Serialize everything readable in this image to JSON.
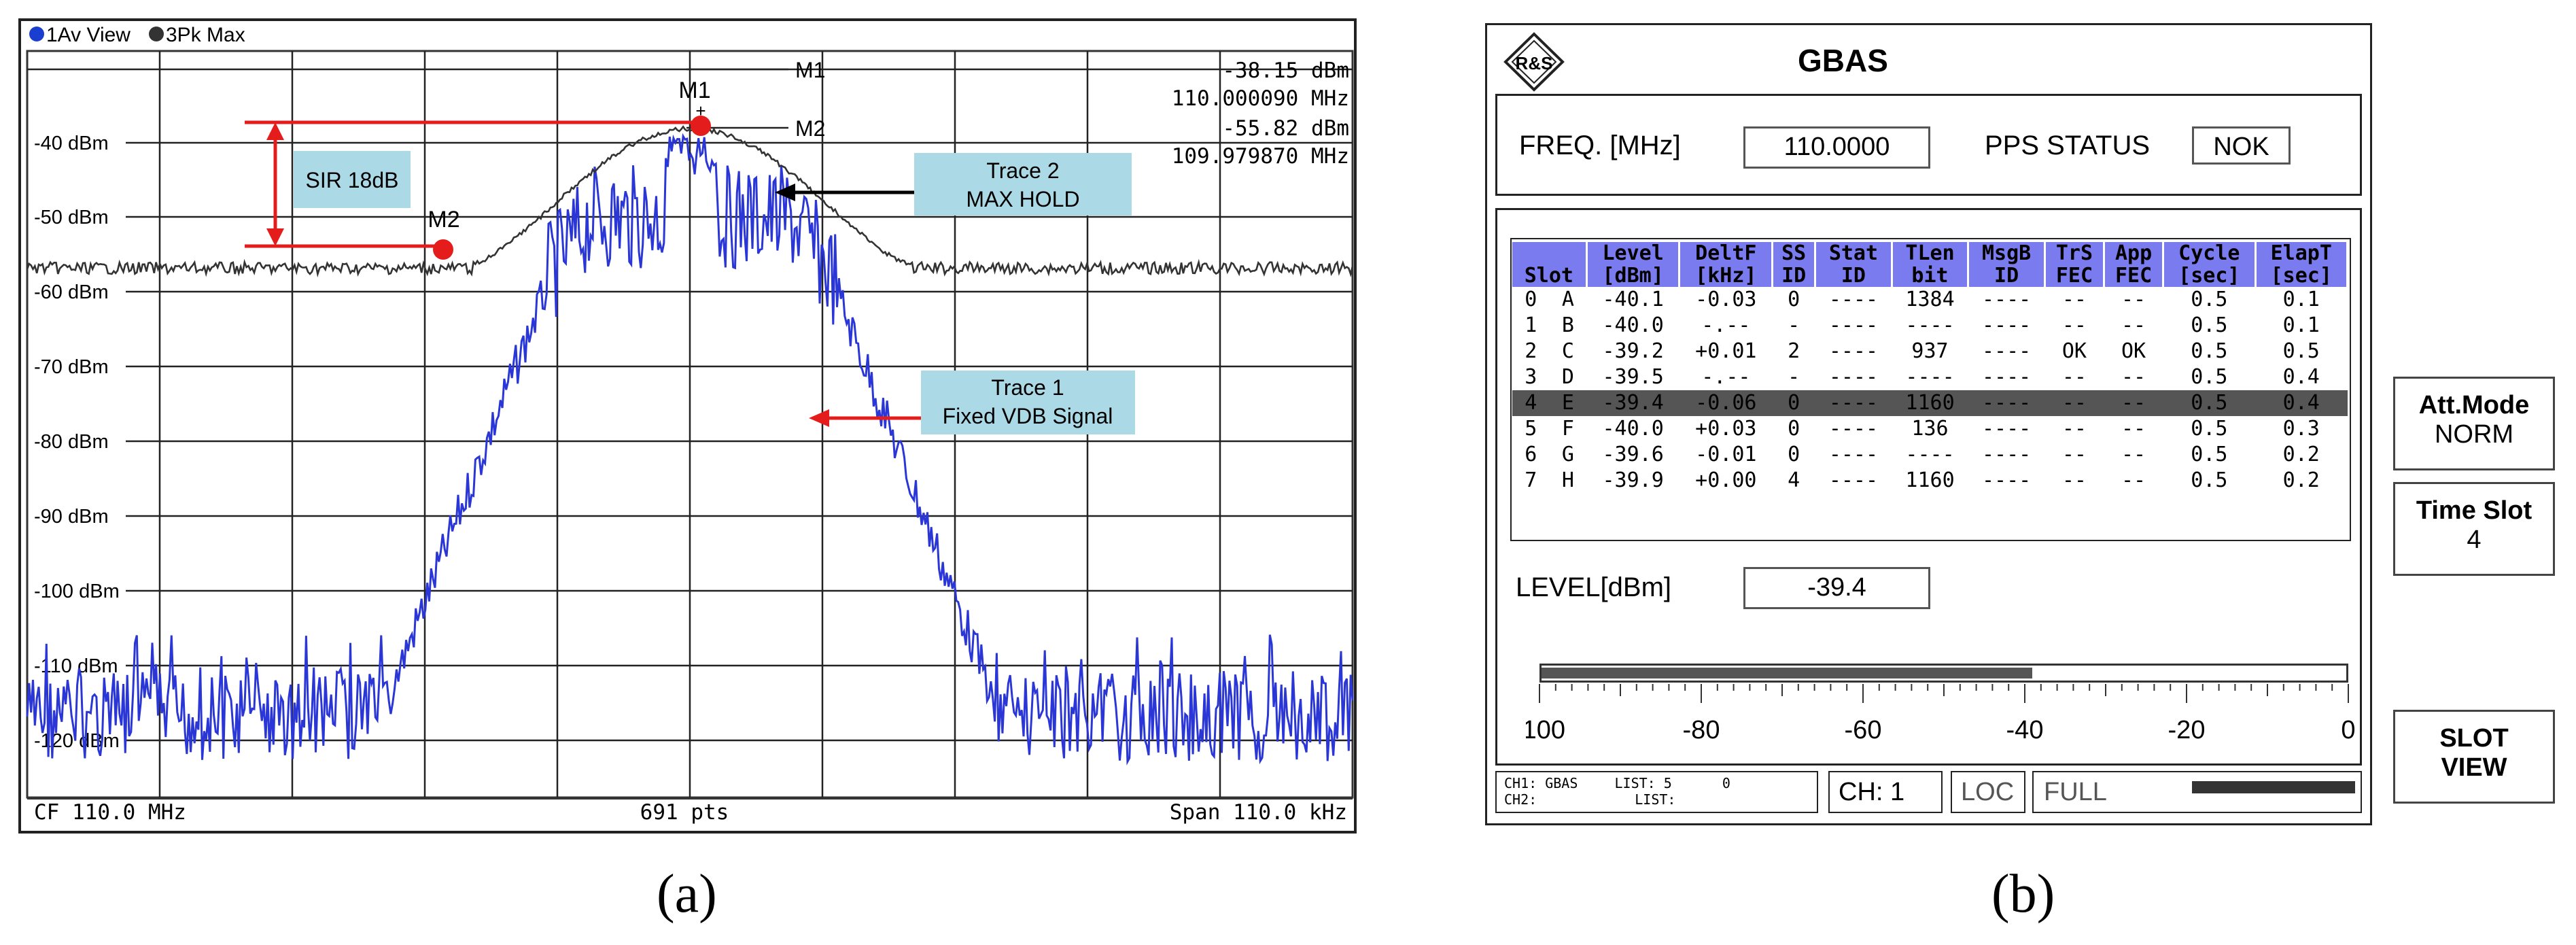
{
  "panel_a": {
    "header_legend": [
      "1Av View",
      "3Pk Max"
    ],
    "y_labels": [
      "-40 dBm",
      "-50 dBm",
      "-60 dBm",
      "-70 dBm",
      "-80 dBm",
      "-90 dBm",
      "-100 dBm",
      "-110 dBm",
      "-120 dBm"
    ],
    "marker_lines": [
      {
        "label": "M1",
        "level": "-38.15 dBm",
        "freq": "110.000090 MHz"
      },
      {
        "label": "M2",
        "level": "-55.82 dBm",
        "freq": "109.979870 MHz"
      }
    ],
    "marker_dot_labels": [
      "M1",
      "M2"
    ],
    "sir_label": "SIR 18dB",
    "trace2_box": [
      "Trace 2",
      "MAX HOLD"
    ],
    "trace1_box": [
      "Trace 1",
      "Fixed VDB Signal"
    ],
    "footer": {
      "left": "CF 110.0 MHz",
      "center": "691 pts",
      "right": "Span 110.0 kHz"
    },
    "caption": "(a)"
  },
  "panel_b": {
    "title": "GBAS",
    "logo": "R&S",
    "freq_label": "FREQ. [MHz]",
    "freq_value": "110.0000",
    "pps_label": "PPS STATUS",
    "pps_value": "NOK",
    "table_headers_top": [
      "",
      "Level",
      "DeltF",
      "SS",
      "Stat",
      "TLen",
      "MsgB",
      "TrS",
      "App",
      "Cycle",
      "ElapT"
    ],
    "table_headers_bottom": [
      "Slot",
      "[dBm]",
      "[kHz]",
      "ID",
      "ID",
      "bit",
      "ID",
      "FEC",
      "FEC",
      "[sec]",
      "[sec]"
    ],
    "rows": [
      [
        "0",
        "A",
        "-40.1",
        "-0.03",
        "0",
        "----",
        "1384",
        "----",
        "--",
        "--",
        "0.5",
        "0.1"
      ],
      [
        "1",
        "B",
        "-40.0",
        "-.--",
        "-",
        "----",
        "----",
        "----",
        "--",
        "--",
        "0.5",
        "0.1"
      ],
      [
        "2",
        "C",
        "-39.2",
        "+0.01",
        "2",
        "----",
        "937",
        "----",
        "OK",
        "OK",
        "0.5",
        "0.5"
      ],
      [
        "3",
        "D",
        "-39.5",
        "-.--",
        "-",
        "----",
        "----",
        "----",
        "--",
        "--",
        "0.5",
        "0.4"
      ],
      [
        "4",
        "E",
        "-39.4",
        "-0.06",
        "0",
        "----",
        "1160",
        "----",
        "--",
        "--",
        "0.5",
        "0.4"
      ],
      [
        "5",
        "F",
        "-40.0",
        "+0.03",
        "0",
        "----",
        "136",
        "----",
        "--",
        "--",
        "0.5",
        "0.3"
      ],
      [
        "6",
        "G",
        "-39.6",
        "-0.01",
        "0",
        "----",
        "----",
        "----",
        "--",
        "--",
        "0.5",
        "0.2"
      ],
      [
        "7",
        "H",
        "-39.9",
        "+0.00",
        "4",
        "----",
        "1160",
        "----",
        "--",
        "--",
        "0.5",
        "0.2"
      ]
    ],
    "level_label": "LEVEL[dBm]",
    "level_value": "-39.4",
    "level_bar_fraction": 0.61,
    "scale_labels": [
      "-100",
      "-80",
      "-60",
      "-40",
      "-20",
      "0"
    ],
    "status": {
      "ch1": "CH1:",
      "ch1_val": "GBAS",
      "list1": "LIST: 5",
      "list1_num": "0",
      "ch2": "CH2:",
      "list2": "LIST:",
      "ch": "CH: 1",
      "loc": "LOC",
      "full": "FULL"
    },
    "side_buttons": [
      {
        "title": "Att.Mode",
        "value": "NORM"
      },
      {
        "title": "Time Slot",
        "value": "4"
      },
      {
        "title": "SLOT",
        "value": "VIEW"
      }
    ],
    "caption": "(b)"
  }
}
